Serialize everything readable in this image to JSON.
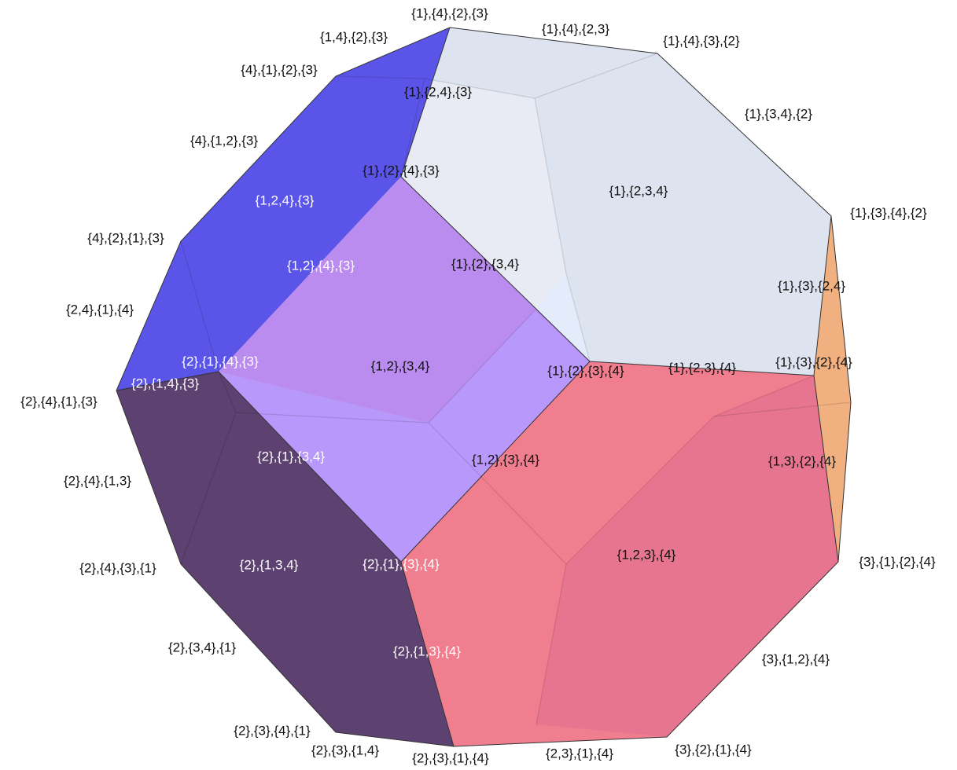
{
  "labels": [
    "{1},{4},{2},{3}",
    "{1},{4},{2,3}",
    "{1},{4},{3},{2}",
    "{1,4},{2},{3}",
    "{4},{1},{2},{3}",
    "{1},{2,4},{3}",
    "{1},{3,4},{2}",
    "{4},{1,2},{3}",
    "{1},{2},{4},{3}",
    "{1},{2,3,4}",
    "{1,2,4},{3}",
    "{1},{3},{4},{2}",
    "{4},{2},{1},{3}",
    "{1,2},{4},{3}",
    "{1},{2},{3,4}",
    "{1},{3},{2,4}",
    "{2,4},{1},{4}",
    "{2},{1},{4},{3}",
    "{1,2},{3,4}",
    "{1},{2},{3},{4}",
    "{1},{2,3},{4}",
    "{1},{3},{2},{4}",
    "{2},{1,4},{3}",
    "{2},{4},{1},{3}",
    "{2},{1},{3,4}",
    "{1,2},{3},{4}",
    "{1,3},{2},{4}",
    "{2},{4},{1,3}",
    "{1,2,3},{4}",
    "{2},{4},{3},{1}",
    "{2},{1,3,4}",
    "{2},{1},{3},{4}",
    "{3},{1},{2},{4}",
    "{2},{1,3},{4}",
    "{2},{3,4},{1}",
    "{3},{1,2},{4}",
    "{2},{3},{4},{1}",
    "{2},{3},{1,4}",
    "{2},{3},{1},{4}",
    "{2,3},{1},{4}",
    "{3},{2},{1},{4}"
  ]
}
